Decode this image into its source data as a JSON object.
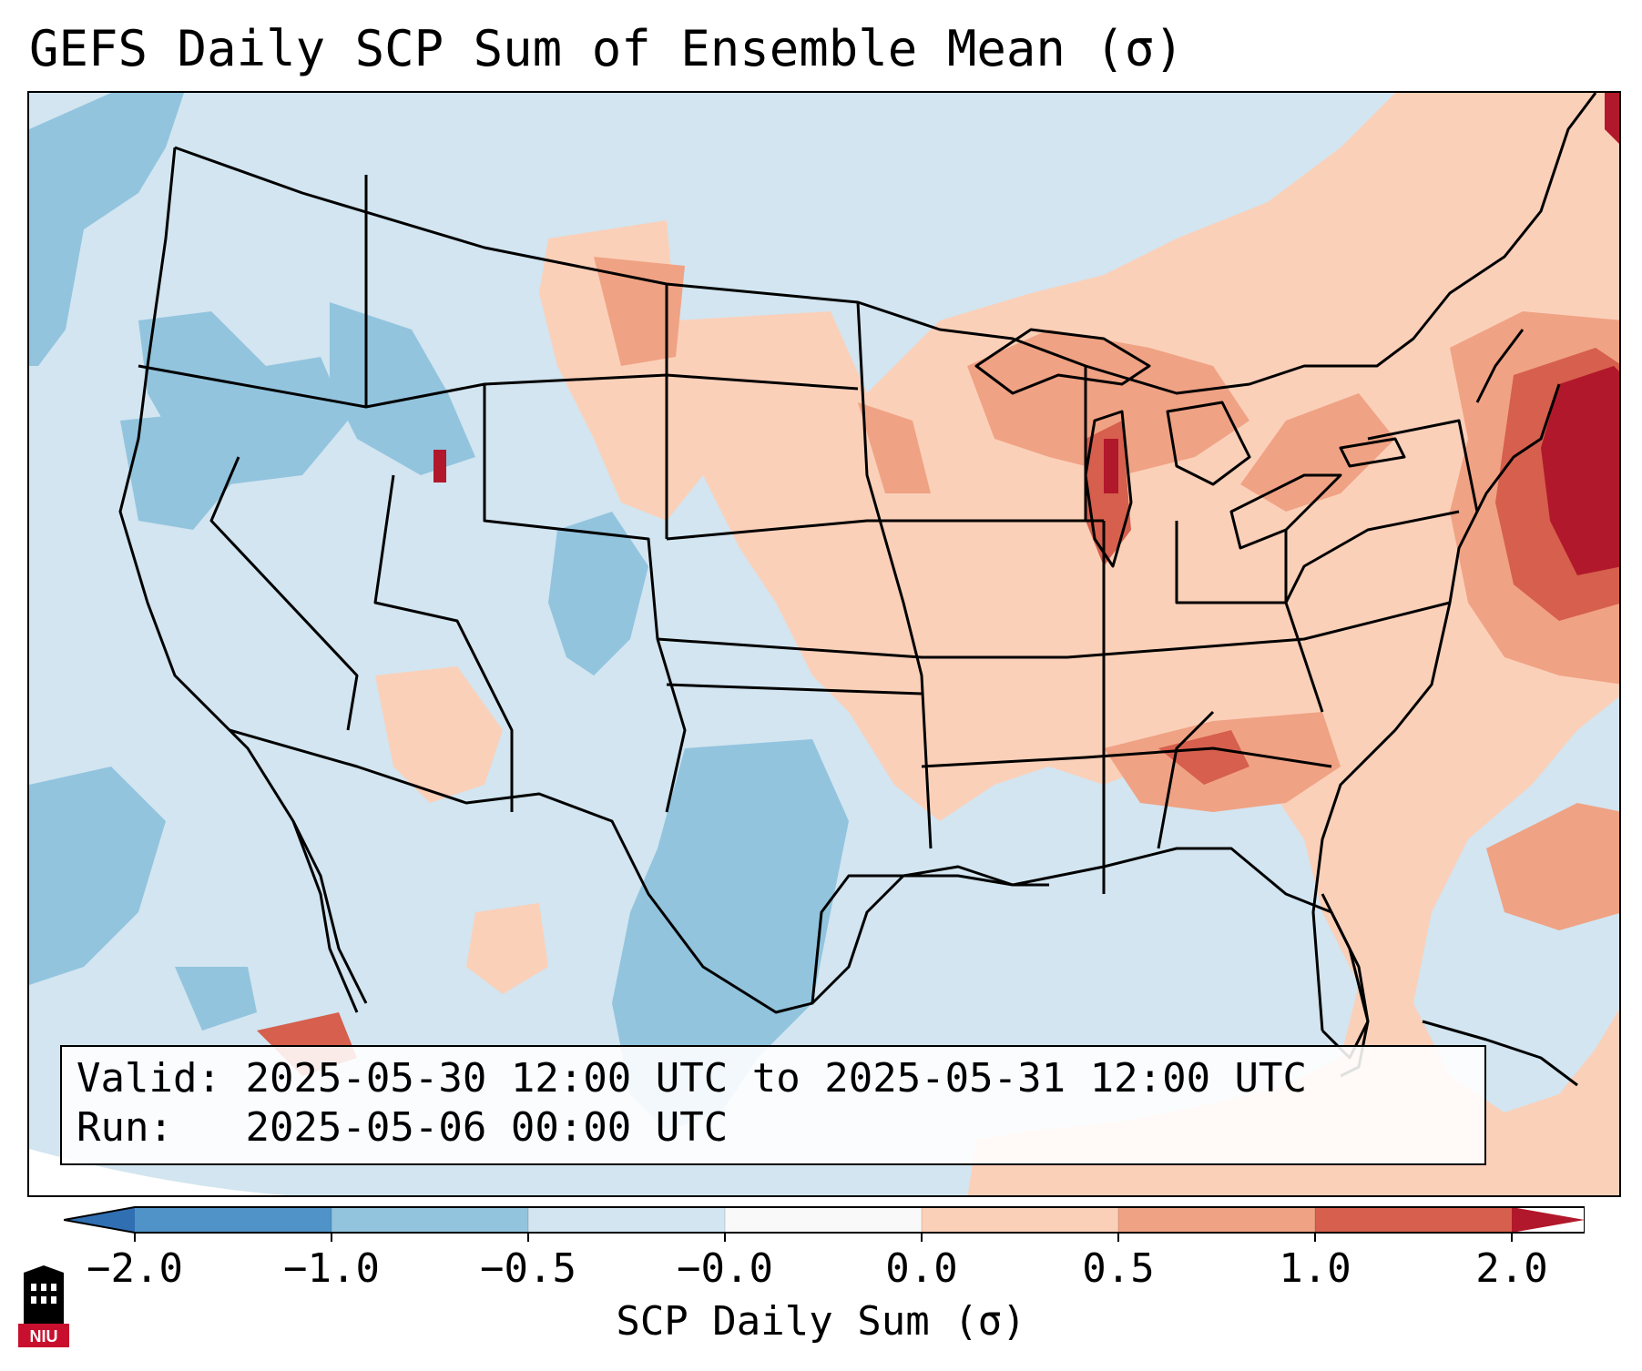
{
  "title": "GEFS Daily SCP Sum of Ensemble Mean (σ)",
  "info": {
    "valid_label": "Valid:",
    "valid_value": "2025-05-30 12:00 UTC to 2025-05-31 12:00 UTC",
    "run_label": "Run:",
    "run_value": "2025-05-06 00:00 UTC"
  },
  "colorbar": {
    "label": "SCP Daily Sum (σ)",
    "ticks": [
      "−2.0",
      "−1.0",
      "−0.5",
      "−0.0",
      "0.0",
      "0.5",
      "1.0",
      "2.0"
    ],
    "colors": [
      "#2f6fb2",
      "#4f93c8",
      "#92c4de",
      "#d2e5f0",
      "#f9f9f9",
      "#fbd0b9",
      "#f0a284",
      "#d65f4d",
      "#b2182b"
    ],
    "extend": "both"
  },
  "map": {
    "region": "Continental United States",
    "background_color": "#d2e5f0",
    "positive_colors": [
      "#fbd0b9",
      "#f0a284",
      "#d65f4d",
      "#b2182b"
    ],
    "negative_colors": [
      "#92c4de",
      "#4f93c8"
    ],
    "high_anomaly_regions": [
      "Northeast / New England coast",
      "Great Lakes",
      "Tennessee Valley"
    ],
    "low_anomaly_regions": [
      "Pacific Northwest",
      "Texas / southern Plains",
      "Colorado"
    ]
  },
  "logo": {
    "text": "NIU",
    "colors": [
      "#c8102e",
      "#000000",
      "#ffffff"
    ]
  }
}
